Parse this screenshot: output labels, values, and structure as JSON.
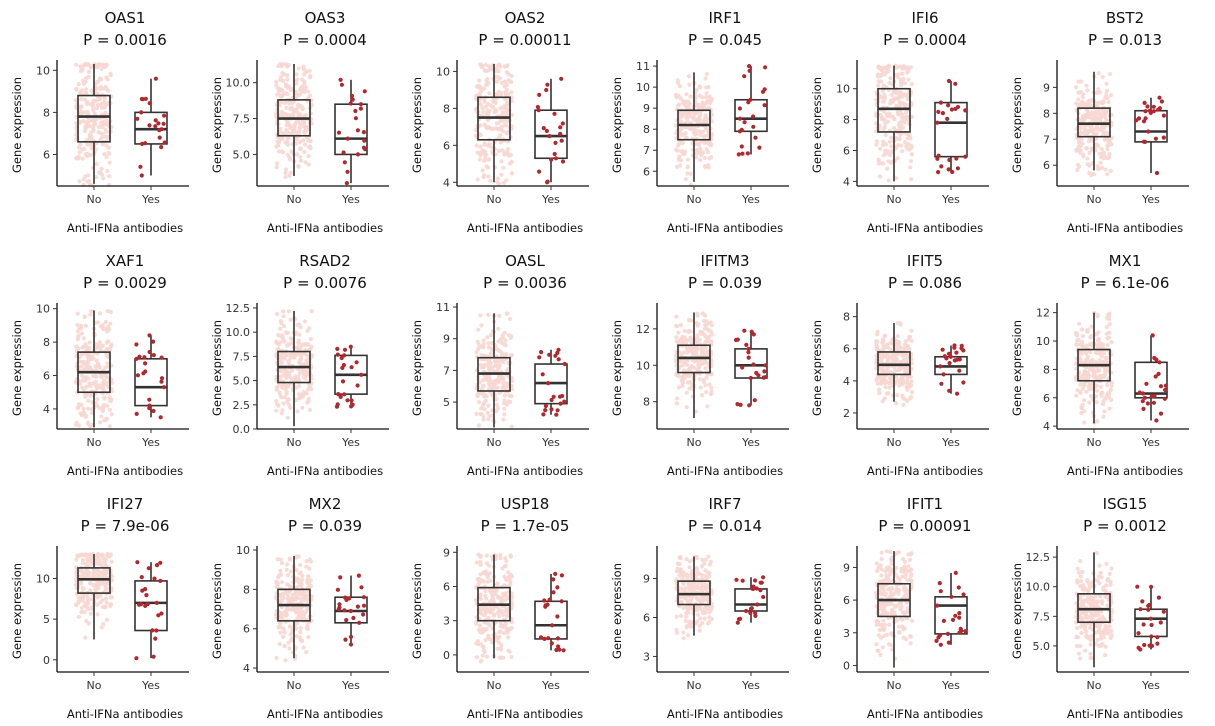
{
  "chart_data": [
    {
      "type": "box",
      "title": "OAS1",
      "pvalue": "P = 0.0016",
      "ylabel": "Gene expression",
      "xlabel": "Anti-IFNa antibodies",
      "categories": [
        "No",
        "Yes"
      ],
      "ylim": [
        4.5,
        10.3
      ],
      "yticks": [
        6,
        8,
        10
      ],
      "groups": [
        {
          "min": 4.6,
          "q1": 6.6,
          "median": 7.8,
          "q3": 8.8,
          "max": 10.3
        },
        {
          "min": 5.0,
          "q1": 6.5,
          "median": 7.2,
          "q3": 8.0,
          "max": 9.6
        }
      ]
    },
    {
      "type": "box",
      "title": "OAS3",
      "pvalue": "P = 0.0004",
      "ylabel": "Gene expression",
      "xlabel": "Anti-IFNa antibodies",
      "categories": [
        "No",
        "Yes"
      ],
      "ylim": [
        2.8,
        11.3
      ],
      "yticks": [
        5.0,
        7.5,
        10.0
      ],
      "groups": [
        {
          "min": 3.5,
          "q1": 6.3,
          "median": 7.5,
          "q3": 8.8,
          "max": 11.3
        },
        {
          "min": 3.0,
          "q1": 5.0,
          "median": 6.1,
          "q3": 8.5,
          "max": 10.2
        }
      ]
    },
    {
      "type": "box",
      "title": "OAS2",
      "pvalue": "P = 0.00011",
      "ylabel": "Gene expression",
      "xlabel": "Anti-IFNa antibodies",
      "categories": [
        "No",
        "Yes"
      ],
      "ylim": [
        3.8,
        10.4
      ],
      "yticks": [
        4,
        6,
        8,
        10
      ],
      "groups": [
        {
          "min": 4.0,
          "q1": 6.3,
          "median": 7.5,
          "q3": 8.6,
          "max": 10.4
        },
        {
          "min": 4.0,
          "q1": 5.3,
          "median": 6.5,
          "q3": 7.9,
          "max": 9.6
        }
      ]
    },
    {
      "type": "box",
      "title": "IRF1",
      "pvalue": "P = 0.045",
      "ylabel": "Gene expression",
      "xlabel": "Anti-IFNa antibodies",
      "categories": [
        "No",
        "Yes"
      ],
      "ylim": [
        5.3,
        11.1
      ],
      "yticks": [
        6,
        7,
        8,
        9,
        10,
        11
      ],
      "groups": [
        {
          "min": 5.5,
          "q1": 7.5,
          "median": 8.2,
          "q3": 8.9,
          "max": 10.7
        },
        {
          "min": 6.8,
          "q1": 7.9,
          "median": 8.5,
          "q3": 9.4,
          "max": 11.0
        }
      ]
    },
    {
      "type": "box",
      "title": "IFI6",
      "pvalue": "P = 0.0004",
      "ylabel": "Gene expression",
      "xlabel": "Anti-IFNa antibodies",
      "categories": [
        "No",
        "Yes"
      ],
      "ylim": [
        3.7,
        11.6
      ],
      "yticks": [
        4,
        6,
        8,
        10
      ],
      "groups": [
        {
          "min": 4.0,
          "q1": 7.2,
          "median": 8.7,
          "q3": 10.0,
          "max": 11.5
        },
        {
          "min": 4.6,
          "q1": 5.6,
          "median": 7.8,
          "q3": 9.1,
          "max": 10.5
        }
      ]
    },
    {
      "type": "box",
      "title": "BST2",
      "pvalue": "P = 0.013",
      "ylabel": "Gene expression",
      "xlabel": "Anti-IFNa antibodies",
      "categories": [
        "No",
        "Yes"
      ],
      "ylim": [
        5.2,
        9.9
      ],
      "yticks": [
        6,
        7,
        8,
        9
      ],
      "groups": [
        {
          "min": 5.8,
          "q1": 7.1,
          "median": 7.6,
          "q3": 8.2,
          "max": 9.6
        },
        {
          "min": 5.7,
          "q1": 6.9,
          "median": 7.3,
          "q3": 8.1,
          "max": 8.6
        }
      ]
    },
    {
      "type": "box",
      "title": "XAF1",
      "pvalue": "P = 0.0029",
      "ylabel": "Gene expression",
      "xlabel": "Anti-IFNa antibodies",
      "categories": [
        "No",
        "Yes"
      ],
      "ylim": [
        2.8,
        10.1
      ],
      "yticks": [
        4,
        6,
        8,
        10
      ],
      "groups": [
        {
          "min": 2.9,
          "q1": 5.0,
          "median": 6.2,
          "q3": 7.4,
          "max": 9.9
        },
        {
          "min": 3.5,
          "q1": 4.2,
          "median": 5.3,
          "q3": 7.0,
          "max": 8.4
        }
      ]
    },
    {
      "type": "box",
      "title": "RSAD2",
      "pvalue": "P = 0.0076",
      "ylabel": "Gene expression",
      "xlabel": "Anti-IFNa antibodies",
      "categories": [
        "No",
        "Yes"
      ],
      "ylim": [
        0,
        12.6
      ],
      "yticks": [
        0.0,
        2.5,
        5.0,
        7.5,
        10.0,
        12.5
      ],
      "groups": [
        {
          "min": 0.3,
          "q1": 4.8,
          "median": 6.4,
          "q3": 8.0,
          "max": 12.2
        },
        {
          "min": 2.3,
          "q1": 3.6,
          "median": 5.6,
          "q3": 7.6,
          "max": 8.5
        }
      ]
    },
    {
      "type": "box",
      "title": "OASL",
      "pvalue": "P = 0.0036",
      "ylabel": "Gene expression",
      "xlabel": "Anti-IFNa antibodies",
      "categories": [
        "No",
        "Yes"
      ],
      "ylim": [
        3.3,
        11
      ],
      "yticks": [
        5,
        7,
        9,
        11
      ],
      "groups": [
        {
          "min": 3.4,
          "q1": 5.7,
          "median": 6.8,
          "q3": 7.8,
          "max": 10.6
        },
        {
          "min": 4.2,
          "q1": 4.9,
          "median": 6.2,
          "q3": 7.4,
          "max": 8.3
        }
      ]
    },
    {
      "type": "box",
      "title": "IFITM3",
      "pvalue": "P = 0.039",
      "ylabel": "Gene expression",
      "xlabel": "Anti-IFNa antibodies",
      "categories": [
        "No",
        "Yes"
      ],
      "ylim": [
        6.5,
        13.2
      ],
      "yticks": [
        8,
        10,
        12
      ],
      "groups": [
        {
          "min": 7.1,
          "q1": 9.6,
          "median": 10.4,
          "q3": 11.1,
          "max": 12.9
        },
        {
          "min": 7.8,
          "q1": 9.3,
          "median": 10.0,
          "q3": 10.9,
          "max": 11.9
        }
      ]
    },
    {
      "type": "box",
      "title": "IFIT5",
      "pvalue": "P = 0.086",
      "ylabel": "Gene expression",
      "xlabel": "Anti-IFNa antibodies",
      "categories": [
        "No",
        "Yes"
      ],
      "ylim": [
        1.0,
        8.6
      ],
      "yticks": [
        2,
        4,
        6,
        8
      ],
      "groups": [
        {
          "min": 2.7,
          "q1": 4.4,
          "median": 5.0,
          "q3": 5.8,
          "max": 7.6
        },
        {
          "min": 3.2,
          "q1": 4.4,
          "median": 4.9,
          "q3": 5.5,
          "max": 6.2
        }
      ]
    },
    {
      "type": "box",
      "title": "MX1",
      "pvalue": "P = 6.1e-06",
      "ylabel": "Gene expression",
      "xlabel": "Anti-IFNa antibodies",
      "categories": [
        "No",
        "Yes"
      ],
      "ylim": [
        3.8,
        12.4
      ],
      "yticks": [
        4,
        6,
        8,
        10,
        12
      ],
      "groups": [
        {
          "min": 4.2,
          "q1": 7.2,
          "median": 8.3,
          "q3": 9.4,
          "max": 12.0
        },
        {
          "min": 4.4,
          "q1": 6.0,
          "median": 6.3,
          "q3": 8.5,
          "max": 10.4
        }
      ]
    },
    {
      "type": "box",
      "title": "IFI27",
      "pvalue": "P = 7.9e-06",
      "ylabel": "Gene expression",
      "xlabel": "Anti-IFNa antibodies",
      "categories": [
        "No",
        "Yes"
      ],
      "ylim": [
        -1.5,
        13.5
      ],
      "yticks": [
        0,
        5,
        10
      ],
      "groups": [
        {
          "min": 2.5,
          "q1": 8.2,
          "median": 9.9,
          "q3": 11.3,
          "max": 13.0
        },
        {
          "min": 0.2,
          "q1": 3.6,
          "median": 7.0,
          "q3": 9.7,
          "max": 12.0
        }
      ]
    },
    {
      "type": "box",
      "title": "MX2",
      "pvalue": "P = 0.039",
      "ylabel": "Gene expression",
      "xlabel": "Anti-IFNa antibodies",
      "categories": [
        "No",
        "Yes"
      ],
      "ylim": [
        3.8,
        10
      ],
      "yticks": [
        4,
        6,
        8,
        10
      ],
      "groups": [
        {
          "min": 4.5,
          "q1": 6.4,
          "median": 7.2,
          "q3": 8.0,
          "max": 9.7
        },
        {
          "min": 5.2,
          "q1": 6.3,
          "median": 6.9,
          "q3": 7.6,
          "max": 8.7
        }
      ]
    },
    {
      "type": "box",
      "title": "USP18",
      "pvalue": "P = 1.7e-05",
      "ylabel": "Gene expression",
      "xlabel": "Anti-IFNa antibodies",
      "categories": [
        "No",
        "Yes"
      ],
      "ylim": [
        -1.5,
        9.2
      ],
      "yticks": [
        0,
        3,
        6,
        9
      ],
      "groups": [
        {
          "min": -0.3,
          "q1": 3.0,
          "median": 4.4,
          "q3": 5.9,
          "max": 8.8
        },
        {
          "min": 0.4,
          "q1": 1.4,
          "median": 2.6,
          "q3": 4.7,
          "max": 7.1
        }
      ]
    },
    {
      "type": "box",
      "title": "IRF7",
      "pvalue": "P = 0.014",
      "ylabel": "Gene expression",
      "xlabel": "Anti-IFNa antibodies",
      "categories": [
        "No",
        "Yes"
      ],
      "ylim": [
        1.8,
        11.2
      ],
      "yticks": [
        3,
        6,
        9
      ],
      "groups": [
        {
          "min": 4.6,
          "q1": 7.0,
          "median": 7.8,
          "q3": 8.8,
          "max": 10.7
        },
        {
          "min": 5.6,
          "q1": 6.5,
          "median": 7.0,
          "q3": 8.2,
          "max": 9.1
        }
      ]
    },
    {
      "type": "box",
      "title": "IFIT1",
      "pvalue": "P = 0.00091",
      "ylabel": "Gene expression",
      "xlabel": "Anti-IFNa antibodies",
      "categories": [
        "No",
        "Yes"
      ],
      "ylim": [
        -0.6,
        10.6
      ],
      "yticks": [
        0,
        3,
        6,
        9
      ],
      "groups": [
        {
          "min": -0.2,
          "q1": 4.5,
          "median": 6.0,
          "q3": 7.5,
          "max": 10.5
        },
        {
          "min": 1.9,
          "q1": 2.9,
          "median": 5.5,
          "q3": 6.3,
          "max": 8.5
        }
      ]
    },
    {
      "type": "box",
      "title": "ISG15",
      "pvalue": "P = 0.0012",
      "ylabel": "Gene expression",
      "xlabel": "Anti-IFNa antibodies",
      "categories": [
        "No",
        "Yes"
      ],
      "ylim": [
        2.8,
        13.1
      ],
      "yticks": [
        5.0,
        7.5,
        10.0,
        12.5
      ],
      "groups": [
        {
          "min": 3.2,
          "q1": 7.0,
          "median": 8.1,
          "q3": 9.4,
          "max": 12.9
        },
        {
          "min": 4.7,
          "q1": 5.8,
          "median": 7.3,
          "q3": 8.1,
          "max": 10.0
        }
      ]
    }
  ]
}
